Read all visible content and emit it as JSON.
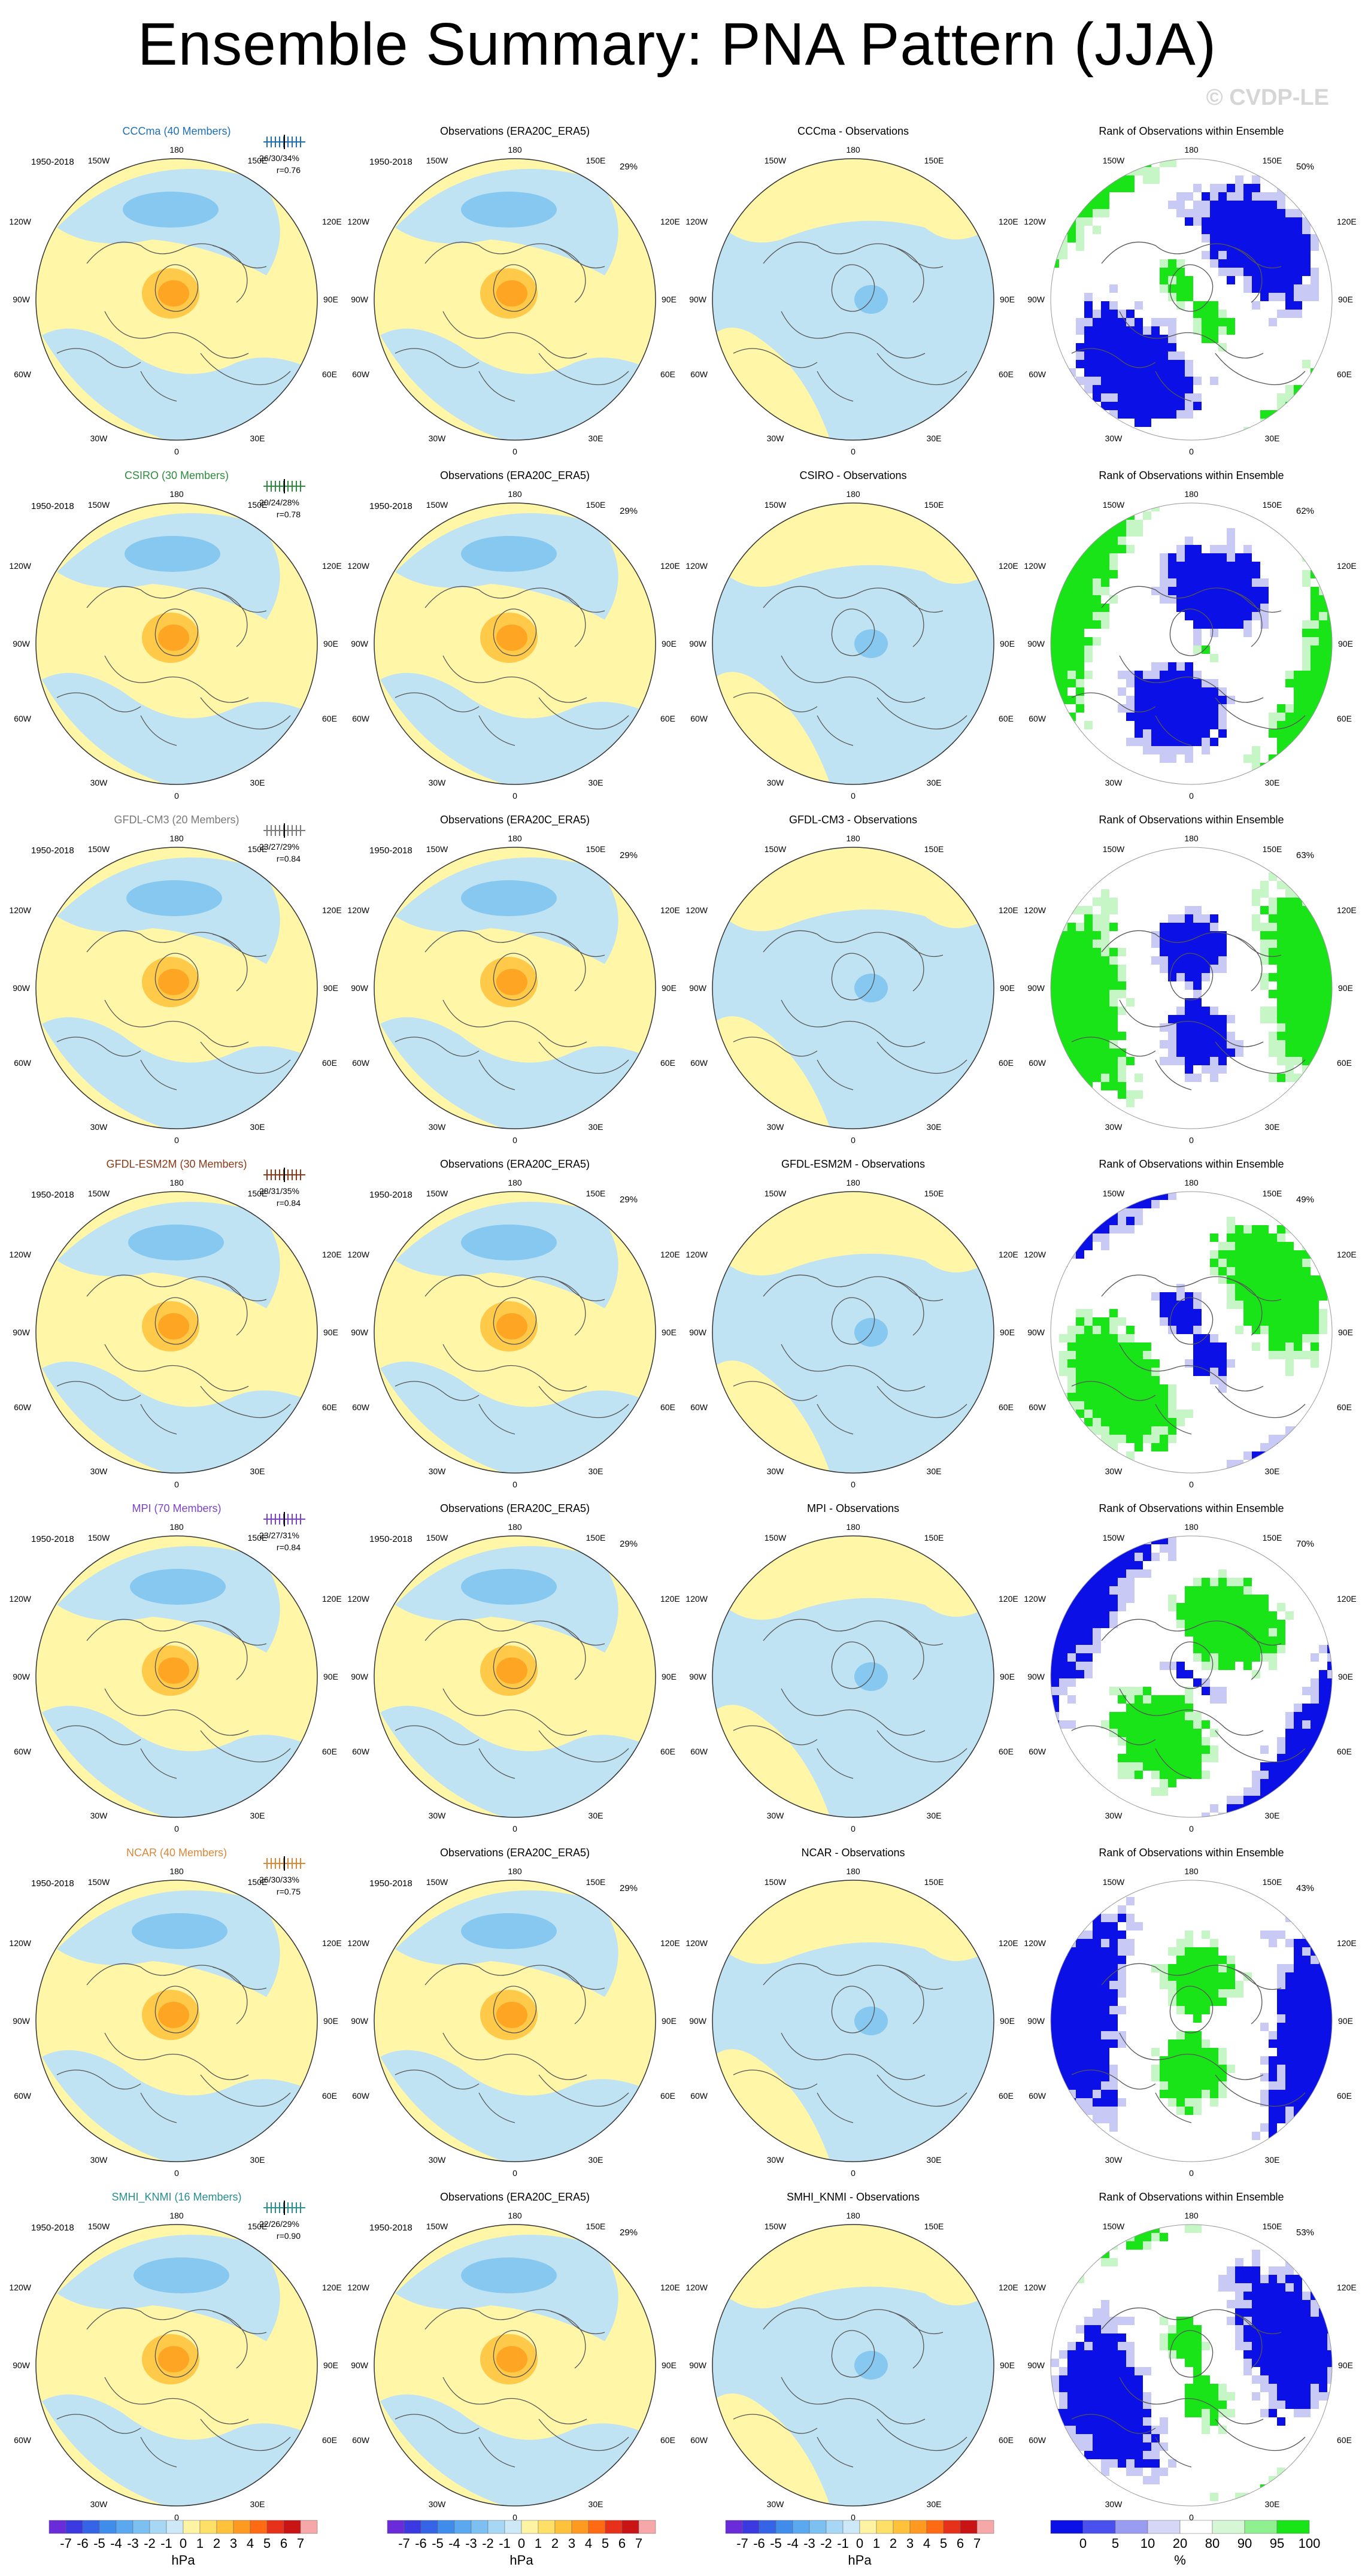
{
  "title": "Ensemble Summary: PNA Pattern (JJA)",
  "watermark": "© CVDP-LE",
  "period": "1950-2018",
  "obs_title": "Observations (ERA20C_ERA5)",
  "obs_pct": "29%",
  "rank_title": "Rank of Observations within Ensemble",
  "lon_labels": {
    "n": "180",
    "nw": "150W",
    "ne": "150E",
    "wnw": "120W",
    "ene": "120E",
    "w": "90W",
    "e": "90E",
    "wsw": "60W",
    "ese": "60E",
    "sw": "30W",
    "se": "30E",
    "s": "0"
  },
  "colors": {
    "light_blue": "#bfe3f2",
    "light_yellow": "#fff6a8",
    "mid_blue": "#86c8f0",
    "dark_blue": "#56b0ec",
    "orange_lt": "#ffc94a",
    "orange": "#ffa524",
    "orange_dk": "#ff7d12",
    "rank_blue": "#0a10e6",
    "rank_green": "#18e418",
    "rank_paleblue": "#c8c9f4",
    "rank_palegreen": "#c6f5c6"
  },
  "models": [
    {
      "name": "CCCma (40 Members)",
      "diff_title": "CCCma - Observations",
      "color": "#1f6fb5",
      "stats": "26/30/34%",
      "r": "r=0.76",
      "rank_pct": "50%"
    },
    {
      "name": "CSIRO (30 Members)",
      "diff_title": "CSIRO - Observations",
      "color": "#2e8b3e",
      "stats": "20/24/28%",
      "r": "r=0.78",
      "rank_pct": "62%"
    },
    {
      "name": "GFDL-CM3 (20 Members)",
      "diff_title": "GFDL-CM3 - Observations",
      "color": "#7a7a7a",
      "stats": "23/27/29%",
      "r": "r=0.84",
      "rank_pct": "63%"
    },
    {
      "name": "GFDL-ESM2M (30 Members)",
      "diff_title": "GFDL-ESM2M - Observations",
      "color": "#8b3a1a",
      "stats": "28/31/35%",
      "r": "r=0.84",
      "rank_pct": "49%"
    },
    {
      "name": "MPI (70 Members)",
      "diff_title": "MPI - Observations",
      "color": "#7b44c9",
      "stats": "23/27/31%",
      "r": "r=0.84",
      "rank_pct": "70%"
    },
    {
      "name": "NCAR (40 Members)",
      "diff_title": "NCAR - Observations",
      "color": "#d9883a",
      "stats": "26/30/33%",
      "r": "r=0.75",
      "rank_pct": "43%"
    },
    {
      "name": "SMHI_KNMI (16 Members)",
      "diff_title": "SMHI_KNMI - Observations",
      "color": "#2a8f8f",
      "stats": "22/26/29%",
      "r": "r=0.90",
      "rank_pct": "53%"
    }
  ],
  "colorbar_hpa": {
    "labels": [
      "-7",
      "-6",
      "-5",
      "-4",
      "-3",
      "-2",
      "-1",
      "0",
      "1",
      "2",
      "3",
      "4",
      "5",
      "6",
      "7"
    ],
    "colors": [
      "#6a2bd8",
      "#3a3ae0",
      "#3564e6",
      "#3f8ceb",
      "#5aa8ef",
      "#7cc0f2",
      "#a6d8f5",
      "#cde9f8",
      "#fff4a3",
      "#ffe066",
      "#ffc23a",
      "#ff9a20",
      "#ff6a12",
      "#e8311a",
      "#c81414",
      "#f6a7a7"
    ],
    "unit": "hPa"
  },
  "colorbar_pct": {
    "labels": [
      "0",
      "5",
      "10",
      "20",
      "80",
      "90",
      "95",
      "100"
    ],
    "colors": [
      "#0a10e6",
      "#4a50ee",
      "#9a9cf2",
      "#d6d7f7",
      "#ffffff",
      "#d6f7d6",
      "#8ff08f",
      "#18e418"
    ],
    "unit": "%"
  }
}
